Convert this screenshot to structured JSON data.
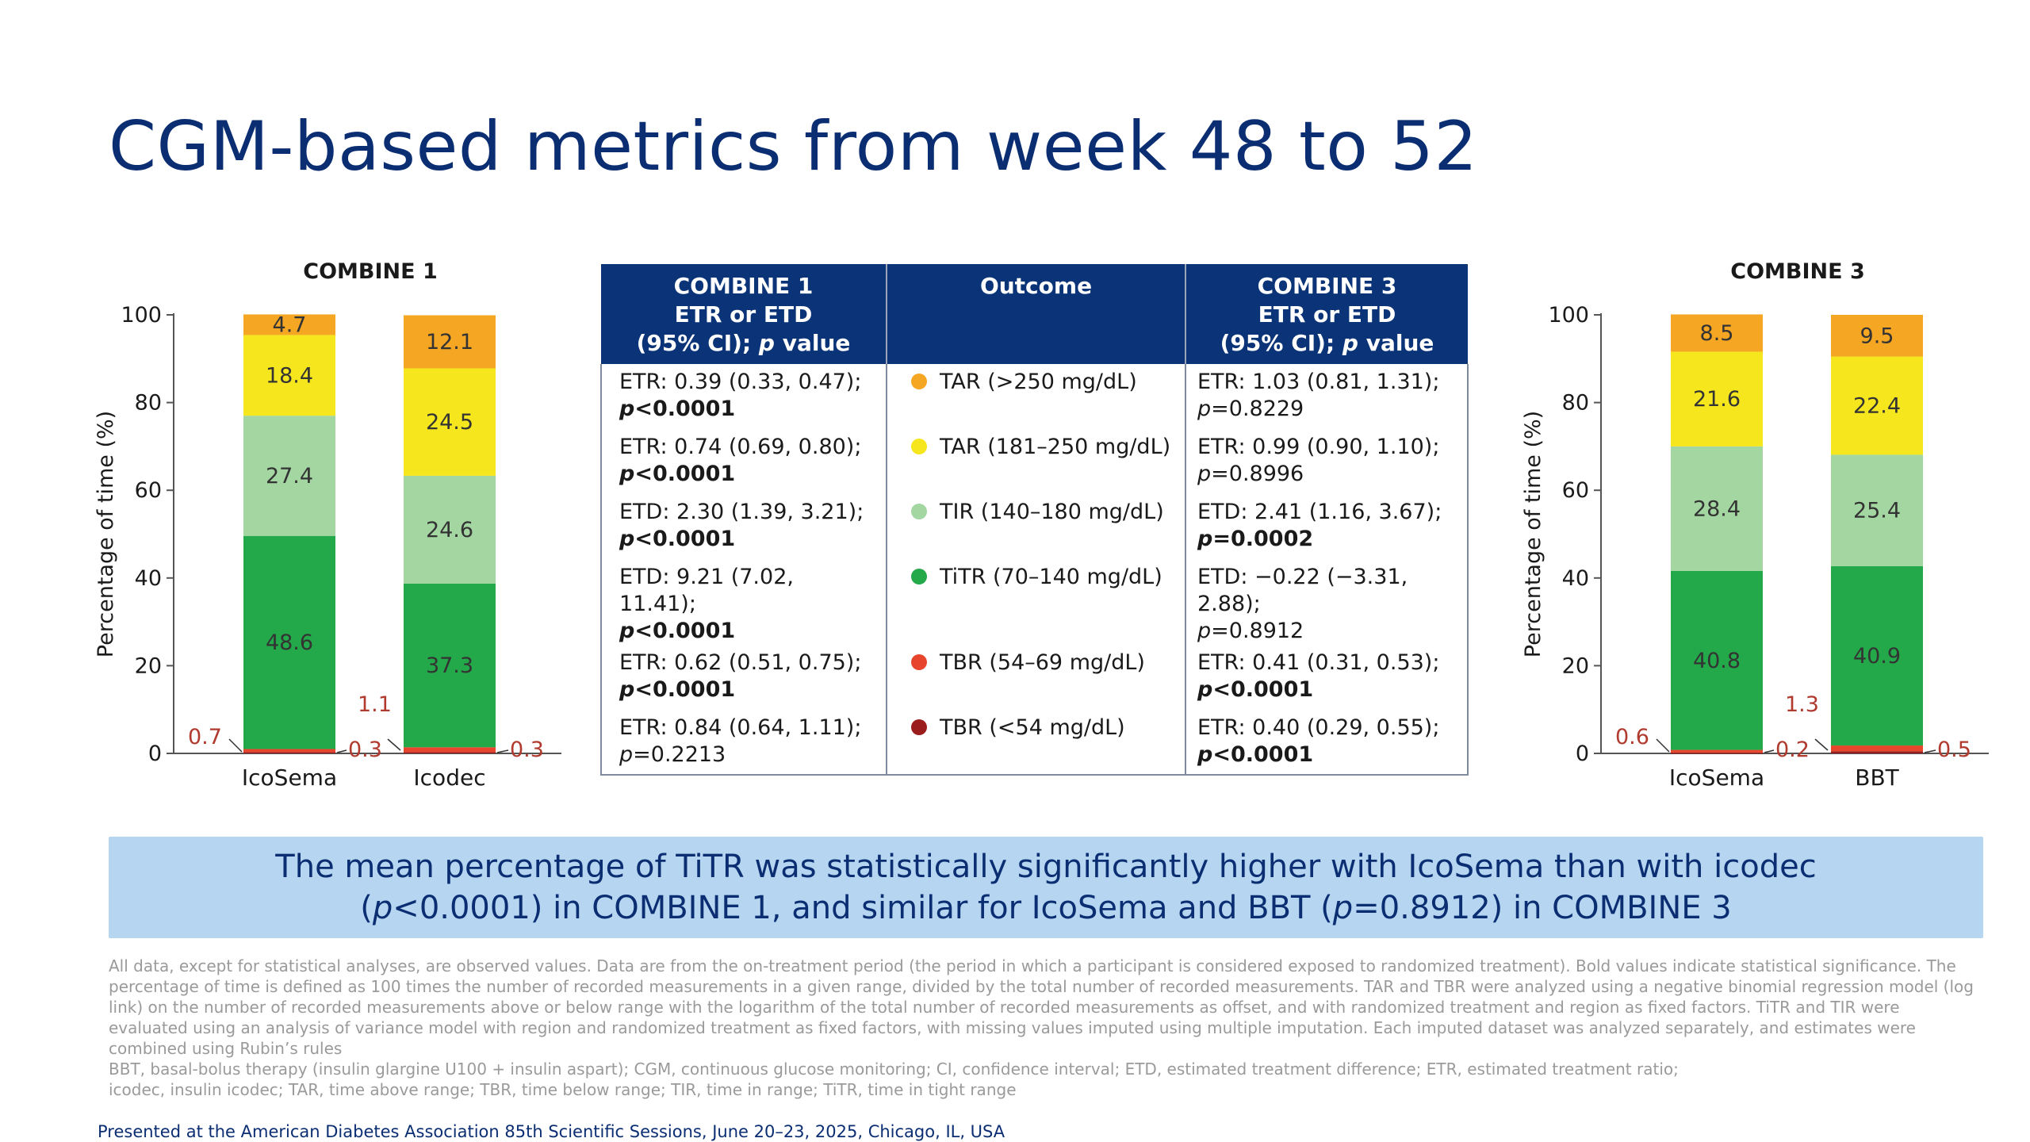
{
  "title": "CGM-based metrics from week 48 to 52",
  "colors": {
    "title": "#0b2e73",
    "table_header": "#0b3478",
    "callout_bg": "#b5d5f0",
    "TAR_250": "#f5a623",
    "TAR_181": "#f5e61e",
    "TIR": "#a3d6a0",
    "TiTR": "#23a84a",
    "TBR_54": "#e8462c",
    "TBR_lt54": "#9b1c1c",
    "small_label": "#b03a2e"
  },
  "chart_data": [
    {
      "type": "bar",
      "stacked": true,
      "title": "COMBINE 1",
      "ylabel": "Percentage of time (%)",
      "xlabel": "",
      "ylim": [
        0,
        100
      ],
      "yticks": [
        0,
        20,
        40,
        60,
        80,
        100
      ],
      "categories": [
        "IcoSema",
        "Icodec"
      ],
      "series": [
        {
          "key": "TBR_lt54",
          "values": [
            0.3,
            0.3
          ],
          "labels": [
            "0.3",
            "0.3"
          ]
        },
        {
          "key": "TBR_54",
          "values": [
            0.7,
            1.1
          ],
          "labels": [
            "0.7",
            "1.1"
          ]
        },
        {
          "key": "TiTR",
          "values": [
            48.6,
            37.3
          ],
          "labels": [
            "48.6",
            "37.3"
          ]
        },
        {
          "key": "TIR",
          "values": [
            27.4,
            24.6
          ],
          "labels": [
            "27.4",
            "24.6"
          ]
        },
        {
          "key": "TAR_181",
          "values": [
            18.4,
            24.5
          ],
          "labels": [
            "18.4",
            "24.5"
          ]
        },
        {
          "key": "TAR_250",
          "values": [
            4.7,
            12.1
          ],
          "labels": [
            "4.7",
            "12.1"
          ]
        }
      ]
    },
    {
      "type": "bar",
      "stacked": true,
      "title": "COMBINE 3",
      "ylabel": "Percentage of time (%)",
      "xlabel": "",
      "ylim": [
        0,
        100
      ],
      "yticks": [
        0,
        20,
        40,
        60,
        80,
        100
      ],
      "categories": [
        "IcoSema",
        "BBT"
      ],
      "series": [
        {
          "key": "TBR_lt54",
          "values": [
            0.2,
            0.5
          ],
          "labels": [
            "0.2",
            "0.5"
          ]
        },
        {
          "key": "TBR_54",
          "values": [
            0.6,
            1.3
          ],
          "labels": [
            "0.6",
            "1.3"
          ]
        },
        {
          "key": "TiTR",
          "values": [
            40.8,
            40.9
          ],
          "labels": [
            "40.8",
            "40.9"
          ]
        },
        {
          "key": "TIR",
          "values": [
            28.4,
            25.4
          ],
          "labels": [
            "28.4",
            "25.4"
          ]
        },
        {
          "key": "TAR_181",
          "values": [
            21.6,
            22.4
          ],
          "labels": [
            "21.6",
            "22.4"
          ]
        },
        {
          "key": "TAR_250",
          "values": [
            8.5,
            9.5
          ],
          "labels": [
            "8.5",
            "9.5"
          ]
        }
      ]
    }
  ],
  "table": {
    "headers": {
      "c1": [
        "COMBINE 1",
        "ETR or ETD",
        "(95% CI); p value"
      ],
      "c2": "Outcome",
      "c3": [
        "COMBINE 3",
        "ETR or ETD",
        "(95% CI); p value"
      ]
    },
    "rows": [
      {
        "c1_est": "ETR: 0.39 (0.33, 0.47);",
        "c1_p": "<0.0001",
        "c1_bold": true,
        "outcome": "TAR (>250 mg/dL)",
        "color_key": "TAR_250",
        "c3_est": "ETR: 1.03 (0.81, 1.31);",
        "c3_p": "=0.8229",
        "c3_bold": false
      },
      {
        "c1_est": "ETR: 0.74 (0.69, 0.80);",
        "c1_p": "<0.0001",
        "c1_bold": true,
        "outcome": "TAR (181–250 mg/dL)",
        "color_key": "TAR_181",
        "c3_est": "ETR: 0.99 (0.90, 1.10);",
        "c3_p": "=0.8996",
        "c3_bold": false
      },
      {
        "c1_est": "ETD: 2.30 (1.39, 3.21);",
        "c1_p": "<0.0001",
        "c1_bold": true,
        "outcome": "TIR (140–180 mg/dL)",
        "color_key": "TIR",
        "c3_est": "ETD: 2.41 (1.16, 3.67);",
        "c3_p": "=0.0002",
        "c3_bold": true
      },
      {
        "c1_est": "ETD: 9.21 (7.02, 11.41);",
        "c1_p": "<0.0001",
        "c1_bold": true,
        "outcome": "TiTR (70–140 mg/dL)",
        "color_key": "TiTR",
        "c3_est": "ETD: −0.22 (−3.31, 2.88);",
        "c3_p": "=0.8912",
        "c3_bold": false
      },
      {
        "c1_est": "ETR: 0.62 (0.51, 0.75);",
        "c1_p": "<0.0001",
        "c1_bold": true,
        "outcome": "TBR (54–69 mg/dL)",
        "color_key": "TBR_54",
        "c3_est": "ETR: 0.41 (0.31, 0.53);",
        "c3_p": "<0.0001",
        "c3_bold": true
      },
      {
        "c1_est": "ETR: 0.84 (0.64, 1.11);",
        "c1_p": "=0.2213",
        "c1_bold": false,
        "outcome": "TBR (<54 mg/dL)",
        "color_key": "TBR_lt54",
        "c3_est": "ETR: 0.40 (0.29, 0.55);",
        "c3_p": "<0.0001",
        "c3_bold": true
      }
    ],
    "p_letter": "p"
  },
  "callout": {
    "line1": "The mean percentage of TiTR was statistically significantly higher with IcoSema than with icodec",
    "line2_pre": "(",
    "line2_p1": "p",
    "line2_mid": "<0.0001) in COMBINE 1, and similar for IcoSema and BBT (",
    "line2_p2": "p",
    "line2_post": "=0.8912) in COMBINE 3"
  },
  "footnotes": [
    "All data, except for statistical analyses, are observed values. Data are from the on-treatment period (the period in which a participant is considered exposed to randomized treatment). Bold values indicate statistical significance. The percentage of time is defined as 100 times the number of recorded measurements in a given range, divided by the total number of recorded measurements. TAR and TBR were analyzed using a negative binomial regression model (log link) on the number of recorded measurements above or below range with the logarithm of the total number of recorded measurements as offset, and with randomized treatment and region as fixed factors. TiTR and TIR were evaluated using an analysis of variance model with region and randomized treatment as fixed factors, with missing values imputed using multiple imputation. Each imputed dataset was analyzed separately, and estimates were combined using Rubin’s rules",
    "BBT, basal-bolus therapy (insulin glargine U100 + insulin aspart); CGM, continuous glucose monitoring; CI, confidence interval; ETD, estimated treatment difference; ETR, estimated treatment ratio;",
    "icodec, insulin icodec; TAR, time above range; TBR, time below range; TIR, time in range; TiTR, time in tight range"
  ],
  "presented": "Presented at the American Diabetes Association 85th Scientific Sessions, June 20–23, 2025, Chicago, IL, USA"
}
